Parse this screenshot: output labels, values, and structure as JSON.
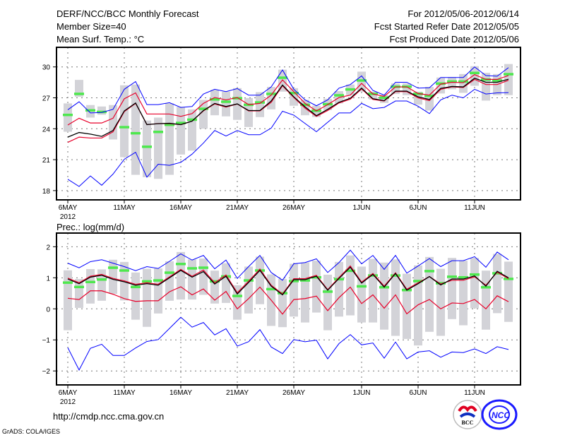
{
  "header": {
    "title": "DERF/NCC/BCC Monthly Forecast",
    "member_size": "Member Size=40",
    "period": "For 2012/05/06-2012/06/14",
    "started": "Fcst Started Refer Date 2012/05/05",
    "produced": "Fcst Produced Date 2012/05/06"
  },
  "footer": {
    "url": "http://cmdp.ncc.cma.gov.cn",
    "grads": "GrADS: COLA/IGES",
    "logo_bcc": "BCC",
    "logo_ncc": "NCC"
  },
  "colors": {
    "spread": "#d3d3d8",
    "obs": "#4ee84e",
    "mean": "#000000",
    "red": "#e8002a",
    "blue": "#0000ff"
  },
  "chart_data": [
    {
      "type": "line",
      "title": "Mean Surf. Temp.: °C",
      "ylim": [
        17.1,
        31.9
      ],
      "yticks": [
        18,
        21,
        24,
        27,
        30
      ],
      "x_tick_labels": [
        "6MAY",
        "11MAY",
        "16MAY",
        "21MAY",
        "26MAY",
        "1JUN",
        "6JUN",
        "11JUN"
      ],
      "x_tick_days": [
        0,
        5,
        10,
        15,
        20,
        26,
        31,
        36
      ],
      "year_label": "2012",
      "grid": true,
      "ensemble_mean": [
        23.19,
        23.64,
        23.48,
        23.26,
        23.83,
        25.73,
        26.5,
        24.4,
        24.49,
        24.53,
        24.4,
        24.74,
        25.77,
        26.46,
        26.16,
        26.41,
        25.77,
        25.77,
        26.69,
        28.24,
        27.1,
        26.12,
        25.27,
        25.88,
        26.57,
        26.96,
        27.94,
        26.91,
        26.73,
        27.65,
        27.65,
        27.1,
        26.84,
        27.92,
        28.1,
        28.06,
        28.9,
        28.51,
        28.51,
        28.81
      ],
      "red_upper": [
        24.36,
        25.02,
        24.56,
        24.56,
        25.02,
        26.91,
        27.48,
        25.43,
        25.43,
        25.43,
        25.2,
        25.47,
        26.46,
        27.03,
        26.8,
        27.03,
        26.34,
        26.46,
        27.26,
        28.74,
        27.6,
        26.46,
        25.73,
        26.34,
        27.03,
        27.26,
        28.4,
        27.37,
        27.14,
        28.06,
        28.06,
        27.42,
        27.26,
        28.33,
        28.51,
        28.47,
        29.25,
        28.79,
        28.79,
        29.16
      ],
      "red_lower": [
        22.68,
        23.19,
        23.1,
        23.1,
        23.7,
        25.66,
        26.46,
        24.4,
        24.5,
        24.5,
        24.4,
        24.74,
        25.73,
        26.41,
        26.1,
        26.4,
        25.73,
        25.73,
        26.57,
        28.17,
        27.03,
        26.0,
        25.2,
        25.77,
        26.5,
        26.87,
        27.87,
        26.84,
        26.69,
        27.6,
        27.6,
        27.0,
        26.73,
        27.83,
        28.06,
        28.0,
        28.79,
        28.29,
        28.29,
        28.7
      ],
      "blue_upper": [
        25.84,
        26.62,
        25.54,
        25.58,
        25.88,
        27.83,
        28.58,
        26.34,
        26.34,
        26.53,
        26.07,
        26.16,
        27.37,
        27.83,
        27.6,
        27.9,
        27.26,
        27.26,
        28.06,
        29.7,
        27.83,
        26.8,
        26.23,
        26.8,
        27.94,
        28.29,
        29.13,
        27.72,
        27.26,
        28.51,
        28.51,
        27.94,
        27.98,
        28.97,
        28.97,
        28.97,
        30.0,
        29.16,
        29.1,
        29.93
      ],
      "blue_lower": [
        19.1,
        18.4,
        19.42,
        18.52,
        19.6,
        21.04,
        21.72,
        19.3,
        20.56,
        20.45,
        20.74,
        21.54,
        22.61,
        23.83,
        23.3,
        23.83,
        23.42,
        23.42,
        24.06,
        25.7,
        25.32,
        24.51,
        23.71,
        24.63,
        25.54,
        25.54,
        26.46,
        25.95,
        26.07,
        26.69,
        26.69,
        26.18,
        25.47,
        26.8,
        27.26,
        27.0,
        27.83,
        27.37,
        27.48,
        27.51
      ],
      "observed": [
        25.36,
        27.4,
        25.8,
        25.65,
        null,
        24.17,
        23.58,
        22.27,
        23.71,
        24.4,
        24.58,
        24.9,
        25.95,
        26.86,
        26.64,
        26.98,
        26.34,
        26.57,
        27.4,
        28.97,
        27.48,
        26.34,
        25.77,
        26.4,
        27.26,
        27.83,
        28.7,
        27.4,
        27.03,
        28.1,
        28.1,
        27.4,
        27.2,
        28.4,
        28.6,
        28.6,
        29.43,
        28.79,
        28.7,
        29.31
      ],
      "spread_max": [
        26.46,
        28.74,
        26.3,
        26.16,
        26.3,
        28.22,
        28.29,
        24.8,
        25.08,
        26.46,
        26.12,
        25.88,
        26.8,
        27.76,
        27.6,
        27.94,
        26.98,
        27.55,
        28.06,
        29.73,
        27.94,
        26.8,
        26.23,
        26.91,
        27.65,
        28.29,
        29.54,
        27.6,
        27.26,
        28.4,
        28.4,
        27.6,
        28.06,
        28.97,
        29.02,
        29.31,
        30.07,
        29.43,
        29.31,
        30.28
      ],
      "spread_min": [
        23.71,
        27.1,
        25.08,
        25.36,
        22.96,
        21.24,
        19.53,
        19.3,
        19.14,
        19.53,
        21.5,
        21.88,
        24.01,
        25.31,
        25.2,
        24.86,
        24.17,
        25.13,
        25.88,
        27.6,
        26.23,
        25.31,
        25.13,
        25.81,
        26.46,
        27.26,
        27.6,
        26.84,
        26.5,
        27.37,
        27.26,
        26.34,
        25.77,
        27.42,
        27.83,
        27.48,
        28.17,
        26.73,
        27.26,
        27.26
      ]
    },
    {
      "type": "line",
      "title": "Prec.: log(mm/d)",
      "ylim": [
        -2.45,
        2.44
      ],
      "yticks": [
        -2,
        -1,
        0,
        1,
        2
      ],
      "x_tick_labels": [
        "6MAY",
        "11MAY",
        "16MAY",
        "21MAY",
        "26MAY",
        "1JUN",
        "6JUN",
        "11JUN"
      ],
      "x_tick_days": [
        0,
        5,
        10,
        15,
        20,
        26,
        31,
        36
      ],
      "year_label": "2012",
      "grid": true,
      "ensemble_mean": [
        0.96,
        0.81,
        1.02,
        1.08,
        0.95,
        0.87,
        0.76,
        0.81,
        0.76,
        1.0,
        1.24,
        1.02,
        1.2,
        0.8,
        1.05,
        0.48,
        0.85,
        1.24,
        0.73,
        0.45,
        0.94,
        0.94,
        1.05,
        0.6,
        0.98,
        1.34,
        0.83,
        1.11,
        0.7,
        1.14,
        0.6,
        0.81,
        1.04,
        0.77,
        0.96,
        0.96,
        1.06,
        0.73,
        1.21,
        1.0
      ],
      "red_upper": [
        0.99,
        0.84,
        1.05,
        1.11,
        0.98,
        0.9,
        0.79,
        0.84,
        0.79,
        1.03,
        1.27,
        1.05,
        1.25,
        0.84,
        1.09,
        0.52,
        0.89,
        1.28,
        0.76,
        0.48,
        0.97,
        0.97,
        1.08,
        0.62,
        1.01,
        1.38,
        0.86,
        1.14,
        0.73,
        1.16,
        0.63,
        0.84,
        1.04,
        0.8,
        0.92,
        0.92,
        1.03,
        0.76,
        1.18,
        0.97
      ],
      "red_lower": [
        0.34,
        0.3,
        0.58,
        0.58,
        0.47,
        0.33,
        0.24,
        0.26,
        0.26,
        0.55,
        0.71,
        0.45,
        0.64,
        0.28,
        0.56,
        0.0,
        0.33,
        0.7,
        0.28,
        -0.17,
        0.3,
        0.33,
        0.41,
        -0.06,
        0.36,
        0.7,
        0.17,
        0.45,
        0.02,
        0.45,
        -0.16,
        0.13,
        0.3,
        0.0,
        0.19,
        0.17,
        0.3,
        0.0,
        0.42,
        0.23
      ],
      "blue_upper": [
        1.47,
        1.32,
        1.52,
        1.58,
        1.47,
        1.36,
        1.23,
        1.36,
        1.3,
        1.53,
        1.77,
        1.57,
        1.72,
        1.29,
        1.57,
        0.98,
        1.36,
        1.72,
        1.17,
        0.92,
        1.45,
        1.49,
        1.61,
        1.17,
        1.49,
        1.89,
        1.45,
        1.72,
        1.27,
        1.72,
        1.15,
        1.38,
        1.62,
        1.36,
        1.55,
        1.55,
        1.68,
        1.34,
        1.83,
        1.58
      ],
      "blue_lower": [
        -1.25,
        -1.97,
        -1.27,
        -1.14,
        -1.5,
        -1.5,
        -1.26,
        -1.05,
        -0.99,
        -0.63,
        -0.27,
        -0.59,
        -0.44,
        -0.84,
        -0.64,
        -1.2,
        -1.06,
        -0.67,
        -1.23,
        -1.44,
        -0.99,
        -1.06,
        -1.01,
        -1.61,
        -1.12,
        -0.83,
        -1.16,
        -1.1,
        -1.59,
        -1.07,
        -1.61,
        -1.39,
        -1.35,
        -1.56,
        -1.39,
        -1.41,
        -1.29,
        -1.44,
        -1.22,
        -1.31
      ],
      "observed": [
        0.85,
        0.71,
        0.87,
        0.95,
        1.33,
        1.24,
        0.71,
        0.89,
        0.92,
        1.17,
        1.45,
        1.31,
        1.33,
        0.89,
        1.05,
        0.42,
        0.92,
        1.24,
        0.64,
        0.51,
        0.9,
        0.92,
        1.02,
        0.56,
        0.96,
        1.23,
        0.73,
        1.08,
        0.7,
        1.08,
        0.61,
        0.9,
        1.22,
        0.83,
        1.04,
        1.02,
        1.11,
        0.7,
        1.15,
        0.97
      ],
      "spread_max": [
        1.24,
        0.96,
        1.28,
        1.27,
        1.58,
        1.51,
        1.17,
        1.29,
        1.3,
        1.53,
        1.83,
        1.59,
        1.62,
        1.23,
        1.47,
        0.76,
        1.36,
        1.68,
        1.11,
        0.96,
        1.45,
        1.49,
        1.55,
        1.1,
        1.51,
        1.72,
        1.36,
        1.61,
        1.49,
        1.59,
        1.13,
        1.4,
        1.67,
        1.29,
        1.64,
        1.55,
        1.64,
        1.23,
        1.77,
        1.52
      ],
      "spread_min": [
        -0.69,
        0.03,
        0.17,
        0.26,
        0.48,
        0.27,
        -0.35,
        -0.58,
        -0.15,
        0.26,
        0.3,
        0.3,
        0.45,
        0.17,
        0.19,
        -0.35,
        -0.15,
        0.15,
        -0.55,
        -0.59,
        -0.25,
        -0.44,
        -0.12,
        -0.69,
        -0.25,
        -0.21,
        -0.44,
        -0.44,
        -0.67,
        -0.87,
        -0.97,
        -1.18,
        -0.74,
        -0.87,
        -0.33,
        -0.53,
        0.02,
        -0.67,
        -0.14,
        -0.42
      ]
    }
  ]
}
